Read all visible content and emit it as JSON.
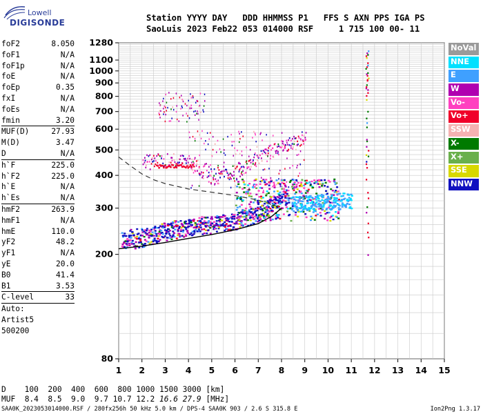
{
  "logo": {
    "line1": "Lowell",
    "line2": "DIGISONDE"
  },
  "header": {
    "labels": "Station YYYY DAY   DDD HHMMSS P1   FFS S AXN PPS IGA PS",
    "values": "SaoLuis 2023 Feb22 053 014000 RSF     1 715 100 00- 11"
  },
  "params": [
    {
      "name": "foF2",
      "value": "8.050"
    },
    {
      "name": "foF1",
      "value": "N/A"
    },
    {
      "name": "foF1p",
      "value": "N/A"
    },
    {
      "name": "foE",
      "value": "N/A"
    },
    {
      "name": "foEp",
      "value": "0.35"
    },
    {
      "name": "fxI",
      "value": "N/A"
    },
    {
      "name": "foEs",
      "value": "N/A"
    },
    {
      "name": "fmin",
      "value": "3.20"
    },
    {
      "sep": true
    },
    {
      "name": "MUF(D)",
      "value": "27.93"
    },
    {
      "name": "M(D)",
      "value": "3.47"
    },
    {
      "name": "D",
      "value": "N/A"
    },
    {
      "sep": true
    },
    {
      "name": "h`F",
      "value": "225.0"
    },
    {
      "name": "h`F2",
      "value": "225.0"
    },
    {
      "name": "h`E",
      "value": "N/A"
    },
    {
      "name": "h`Es",
      "value": "N/A"
    },
    {
      "sep": true
    },
    {
      "name": "hmF2",
      "value": "263.9"
    },
    {
      "name": "hmF1",
      "value": "N/A"
    },
    {
      "name": "hmE",
      "value": "110.0"
    },
    {
      "name": "yF2",
      "value": "48.2"
    },
    {
      "name": "yF1",
      "value": "N/A"
    },
    {
      "name": "yE",
      "value": "20.0"
    },
    {
      "name": "B0",
      "value": "41.4"
    },
    {
      "name": "B1",
      "value": "3.53"
    },
    {
      "sep": true
    },
    {
      "name": "C-level",
      "value": "33"
    },
    {
      "sep": true
    },
    {
      "note": "Auto:"
    },
    {
      "note": "Artist5"
    },
    {
      "note": "500200"
    }
  ],
  "legend": [
    {
      "label": "NoVal",
      "color": "#9a9a9a"
    },
    {
      "label": "NNE",
      "color": "#00e0ff"
    },
    {
      "label": "E",
      "color": "#3fa0ff"
    },
    {
      "label": "W",
      "color": "#b000b0"
    },
    {
      "label": "Vo-",
      "color": "#ff40c0"
    },
    {
      "label": "Vo+",
      "color": "#f0002a"
    },
    {
      "label": "SSW",
      "color": "#f5b2b2"
    },
    {
      "label": "X-",
      "color": "#007a00"
    },
    {
      "label": "X+",
      "color": "#6ab04c"
    },
    {
      "label": "SSE",
      "color": "#d8d800"
    },
    {
      "label": "NNW",
      "color": "#1010c0"
    }
  ],
  "footer": {
    "d_line": "D    100  200  400  600  800 1000 1500 3000 [km]",
    "muf_label": "MUF  ",
    "muf_plain": "8.4  8.5  9.0  9.7 10.7 12.2 ",
    "muf_italic": "16.6 27.9",
    "muf_unit": " [MHz]",
    "file": "SAA0K_2023053014000.RSF / 280fx256h 50 kHz 5.0 km / DPS-4 SAA0K 903 / 2.6 S 315.8 E",
    "version": "Ion2Png 1.3.17"
  },
  "chart_data": {
    "type": "scatter",
    "title": "",
    "xlabel": "",
    "ylabel": "",
    "x_scale": "linear",
    "y_scale": "log",
    "xlim": [
      1,
      15
    ],
    "ylim": [
      80,
      1280
    ],
    "x_ticks": [
      1,
      2,
      3,
      4,
      5,
      6,
      7,
      8,
      9,
      10,
      11,
      12,
      13,
      14,
      15
    ],
    "y_ticks": [
      80,
      200,
      300,
      400,
      500,
      600,
      700,
      800,
      900,
      1000,
      1100,
      1280
    ],
    "grid": true,
    "series": [
      {
        "name": "NoVal",
        "color": "#9a9a9a"
      },
      {
        "name": "NNE",
        "color": "#00e0ff"
      },
      {
        "name": "E",
        "color": "#3fa0ff"
      },
      {
        "name": "W",
        "color": "#b000b0"
      },
      {
        "name": "Vo-",
        "color": "#ff40c0"
      },
      {
        "name": "Vo+",
        "color": "#f0002a"
      },
      {
        "name": "SSW",
        "color": "#f5b2b2"
      },
      {
        "name": "X-",
        "color": "#007a00"
      },
      {
        "name": "X+",
        "color": "#6ab04c"
      },
      {
        "name": "SSE",
        "color": "#d8d800"
      },
      {
        "name": "NNW",
        "color": "#1010c0"
      }
    ],
    "trace_lower": {
      "x": [
        1.0,
        2.0,
        3.0,
        4.0,
        5.0,
        6.0,
        7.0,
        7.6,
        8.0
      ],
      "y": [
        210,
        215,
        222,
        230,
        238,
        248,
        262,
        280,
        300
      ]
    },
    "trace_dashed": {
      "x": [
        1.0,
        1.5,
        2.0,
        2.5,
        3.0,
        4.0,
        5.0,
        6.0,
        7.0,
        7.8
      ],
      "y": [
        470,
        435,
        405,
        385,
        372,
        355,
        345,
        335,
        322,
        305
      ]
    },
    "o_trace": {
      "x": [
        1.0,
        2.0,
        3.0,
        4.0,
        5.0,
        6.0,
        7.0,
        7.5,
        8.0,
        8.5,
        9.0,
        10.0,
        10.5
      ],
      "y": [
        215,
        222,
        235,
        245,
        250,
        258,
        275,
        300,
        320,
        310,
        305,
        308,
        312
      ]
    },
    "spread_upper": {
      "x": [
        2.0,
        3.0,
        4.0,
        5.0,
        6.0,
        7.0,
        8.0,
        9.0
      ],
      "y": [
        450,
        460,
        455,
        400,
        420,
        470,
        520,
        560
      ]
    },
    "high_echoes": {
      "x": [
        2.8,
        3.5,
        4.0,
        4.5,
        9.0,
        11.5,
        11.7
      ],
      "y": [
        670,
        700,
        760,
        820,
        620,
        1200,
        1000
      ]
    },
    "vertical_stripe": {
      "x": 11.6,
      "y_from": 200,
      "y_to": 1200
    }
  }
}
